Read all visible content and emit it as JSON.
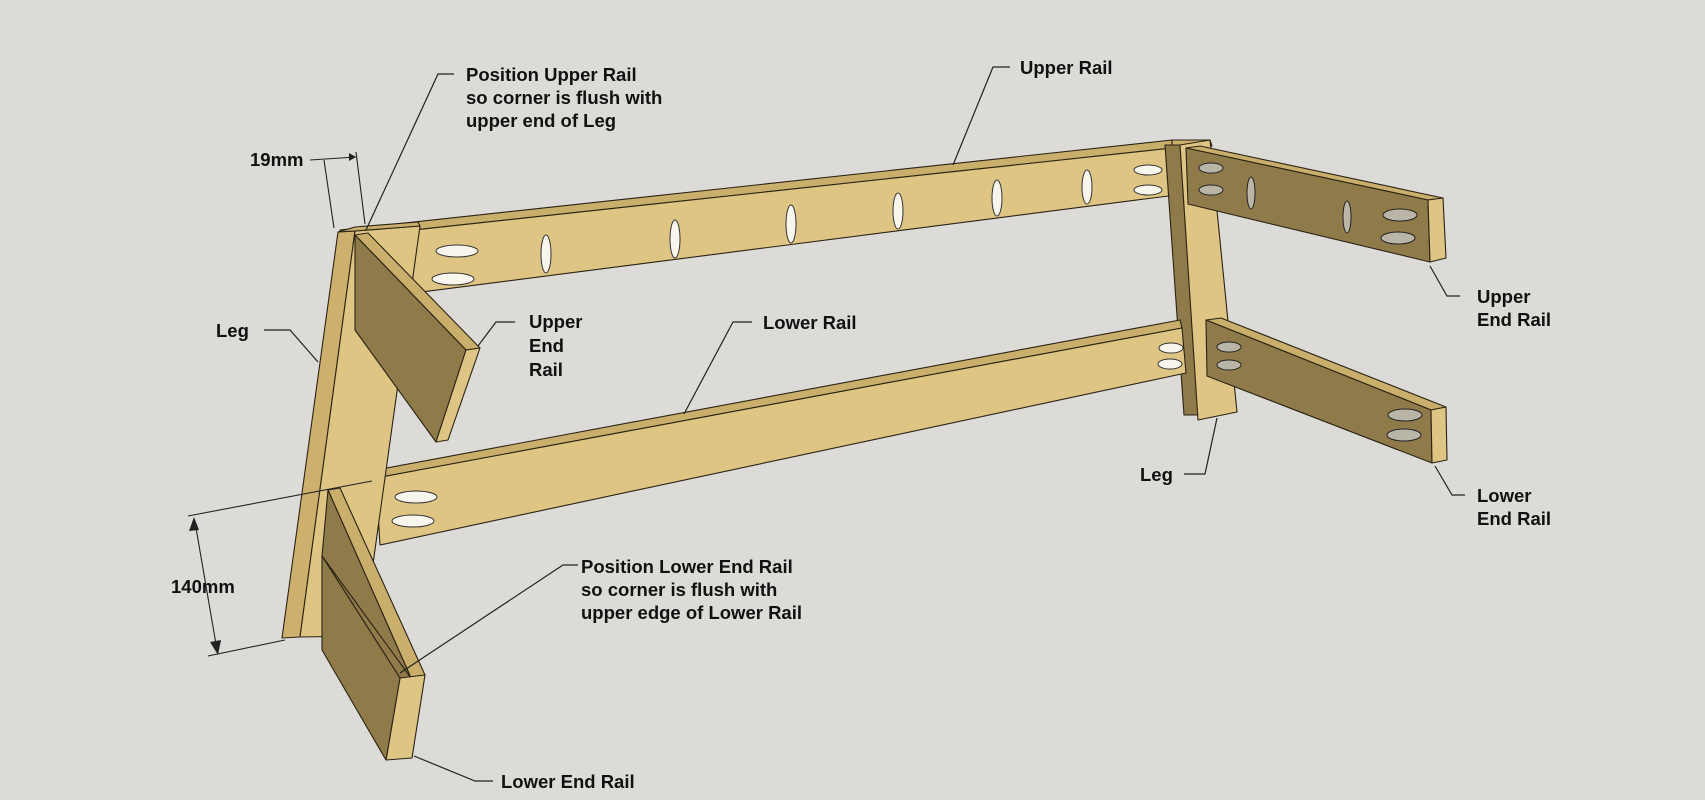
{
  "labels": {
    "position_upper_rail": [
      "Position Upper Rail",
      "so corner is flush with",
      "upper end of Leg"
    ],
    "upper_rail": "Upper Rail",
    "upper_end_rail_left": [
      "Upper",
      "End",
      "Rail"
    ],
    "upper_end_rail_right": [
      "Upper",
      "End Rail"
    ],
    "lower_rail": "Lower Rail",
    "leg_left": "Leg",
    "leg_right": "Leg",
    "lower_end_rail_right": [
      "Lower",
      "End Rail"
    ],
    "position_lower_end_rail": [
      "Position Lower End Rail",
      "so corner is flush with",
      "upper edge of Lower Rail"
    ],
    "lower_end_rail_bottom": "Lower End Rail"
  },
  "dimensions": {
    "thickness": "19mm",
    "height": "140mm"
  },
  "colors": {
    "background": "#dcdbd7",
    "wood_face": "#dec584",
    "wood_side": "#8f7a49",
    "wood_top": "#c9ae6c",
    "wood_end_dark": "#7c6940",
    "hole_light": "#f7f5ec",
    "hole_dark": "#b9b6a8"
  }
}
